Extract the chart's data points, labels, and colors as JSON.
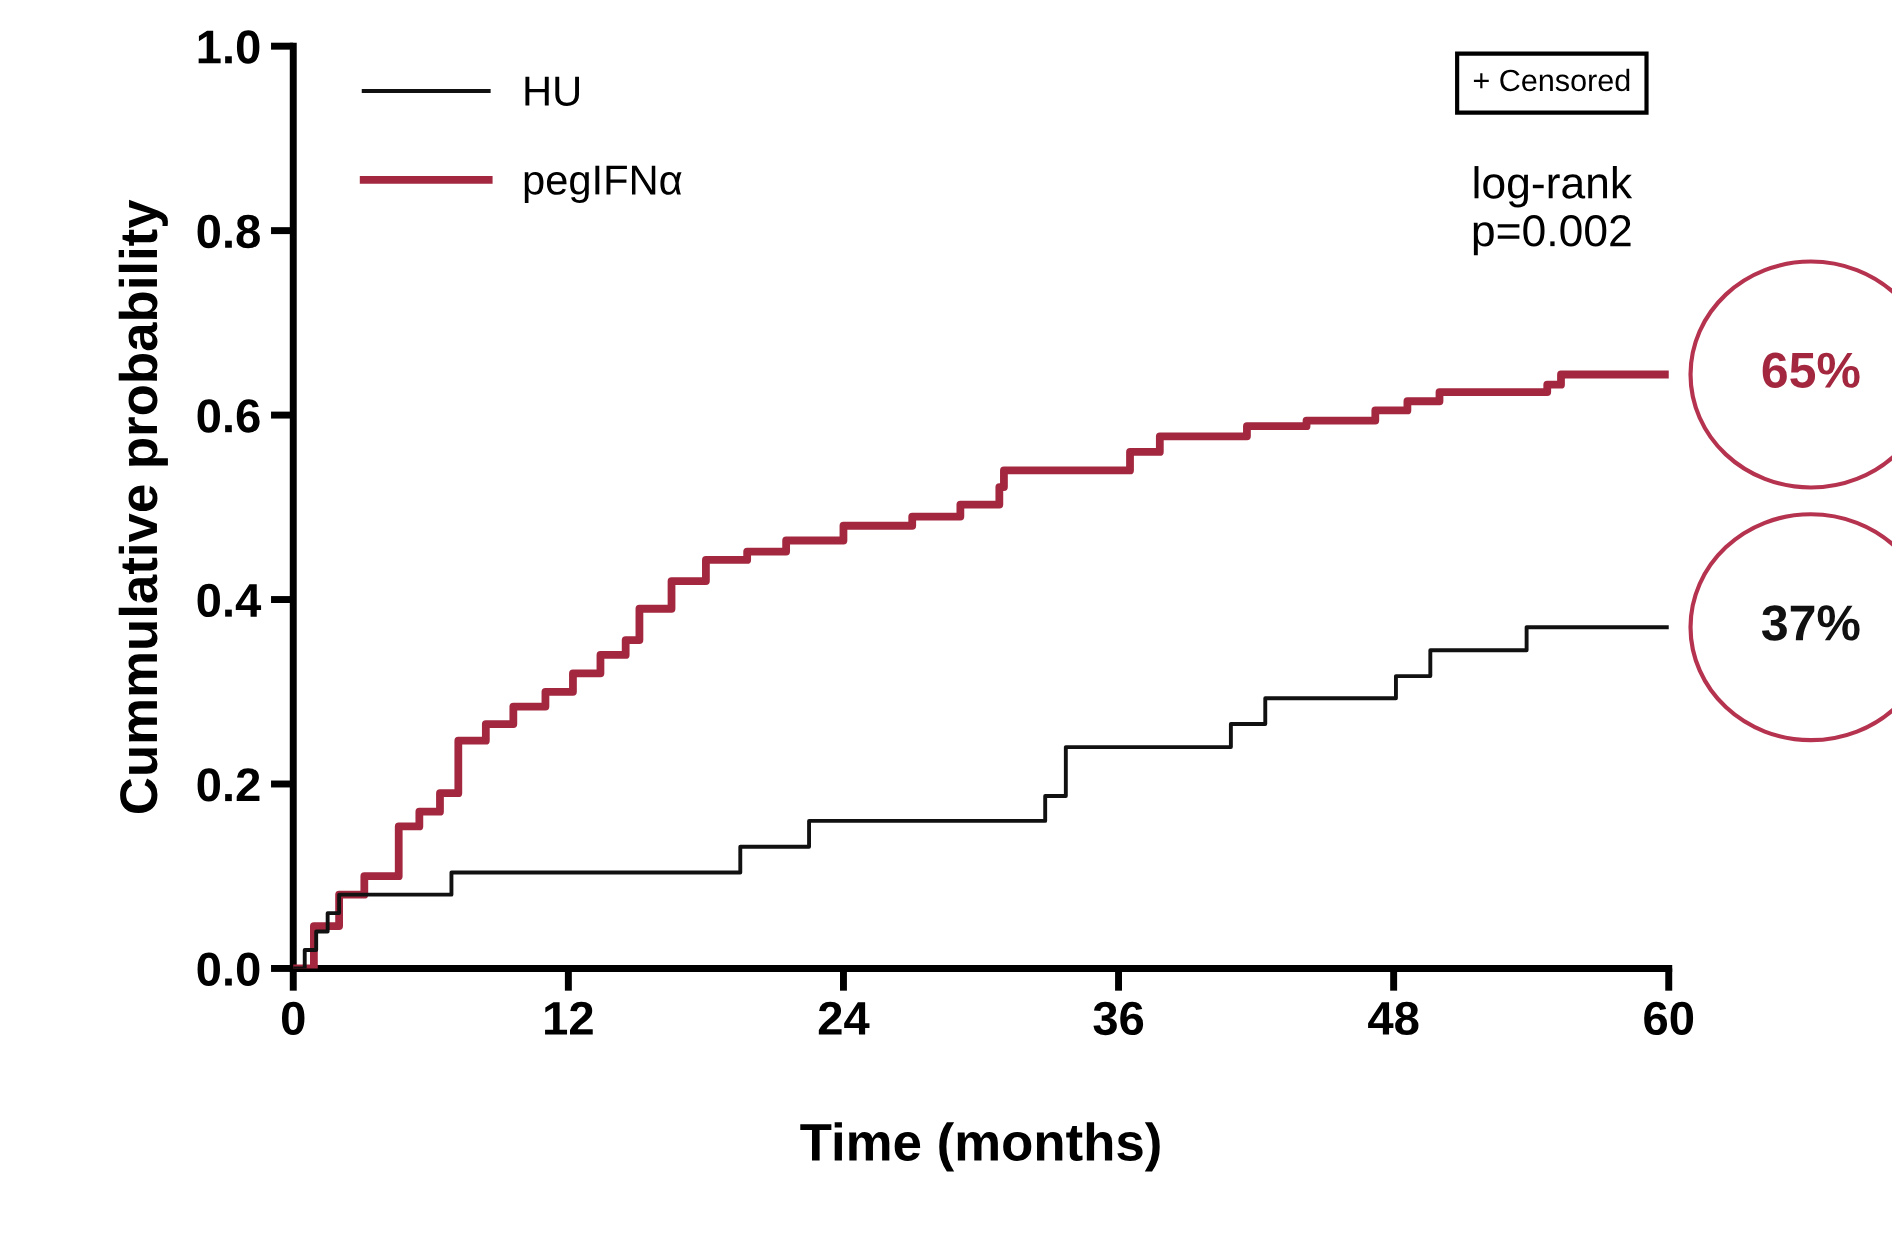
{
  "chart_data": {
    "type": "step",
    "xlabel": "Time (months)",
    "ylabel": "Cummulative probability",
    "xlim": [
      0,
      60
    ],
    "ylim": [
      0,
      1.0
    ],
    "xticks": [
      0,
      12,
      24,
      36,
      48,
      60
    ],
    "yticks": [
      {
        "value": 0,
        "label": "0.0"
      },
      {
        "value": 0.2,
        "label": "0.2"
      },
      {
        "value": 0.4,
        "label": "0.4"
      },
      {
        "value": 0.6,
        "label": "0.6"
      },
      {
        "value": 0.8,
        "label": "0.8"
      },
      {
        "value": 1.0,
        "label": "1.0"
      }
    ],
    "grid": false,
    "legend": "top left",
    "line_style": "solid",
    "marker": "none",
    "series": [
      {
        "name": "HU",
        "color": "#111111",
        "x": [
          0,
          0.5,
          1,
          1.5,
          2,
          6.9,
          19.5,
          22.5,
          32.8,
          33.7,
          40.9,
          42.4,
          48.1,
          49.6,
          53.8,
          60
        ],
        "values": [
          0,
          0.02,
          0.04,
          0.06,
          0.08,
          0.104,
          0.132,
          0.16,
          0.187,
          0.24,
          0.265,
          0.293,
          0.317,
          0.345,
          0.37,
          0.37
        ]
      },
      {
        "name": "pegIFNα",
        "color": "#a3283f",
        "x": [
          0,
          0.9,
          2.0,
          3.1,
          4.6,
          5.5,
          6.4,
          7.2,
          8.4,
          9.6,
          11.0,
          12.2,
          13.4,
          14.5,
          15.1,
          16.5,
          18.0,
          19.8,
          21.5,
          24.0,
          27.0,
          29.1,
          30.8,
          31.0,
          35.2,
          36.5,
          37.8,
          41.6,
          44.2,
          47.2,
          48.6,
          50.0,
          54.7,
          55.3,
          60
        ],
        "values": [
          0,
          0.046,
          0.08,
          0.1,
          0.154,
          0.17,
          0.19,
          0.247,
          0.265,
          0.284,
          0.3,
          0.32,
          0.34,
          0.356,
          0.39,
          0.42,
          0.443,
          0.452,
          0.464,
          0.48,
          0.49,
          0.503,
          0.522,
          0.54,
          0.54,
          0.56,
          0.577,
          0.588,
          0.594,
          0.605,
          0.615,
          0.625,
          0.633,
          0.644,
          0.644
        ]
      }
    ],
    "annotations": [
      "+ Censored",
      "log-rank\np=0.002",
      {
        "text": "65%",
        "x": 60,
        "y": 0.644
      },
      {
        "text": "37%",
        "x": 60,
        "y": 0.37
      }
    ]
  }
}
